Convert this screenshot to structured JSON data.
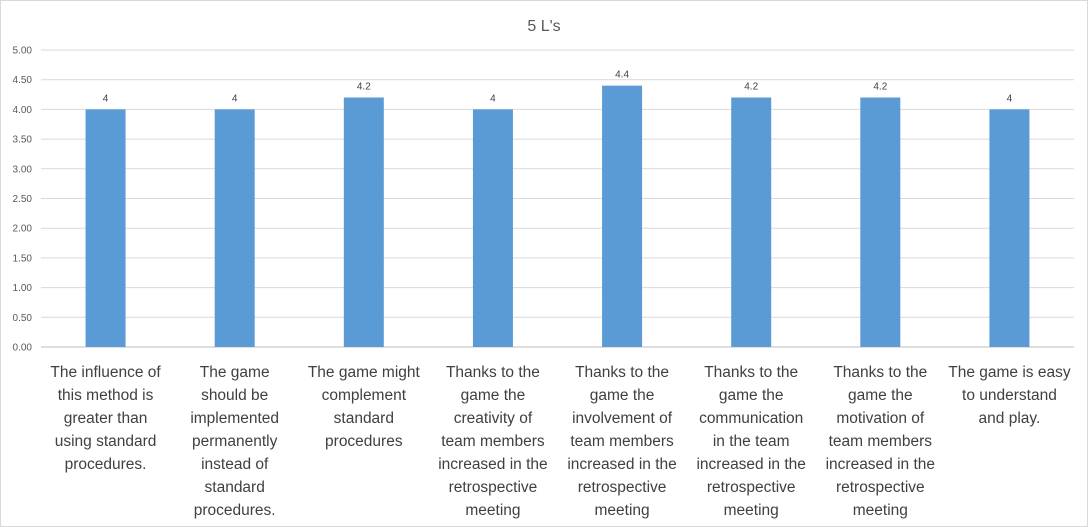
{
  "chart_data": {
    "type": "bar",
    "title": "5 L's",
    "xlabel": "",
    "ylabel": "",
    "ylim": [
      0,
      5
    ],
    "yticks": [
      "0.00",
      "0.50",
      "1.00",
      "1.50",
      "2.00",
      "2.50",
      "3.00",
      "3.50",
      "4.00",
      "4.50",
      "5.00"
    ],
    "grid": true,
    "legend": "none",
    "bar_color": "#5b9bd5",
    "categories": [
      [
        "The influence of",
        "this method is",
        "greater than",
        "using standard",
        "procedures."
      ],
      [
        "The game",
        "should be",
        "implemented",
        "permanently",
        "instead of",
        "standard",
        "procedures."
      ],
      [
        "The game might",
        "complement",
        "standard",
        "procedures"
      ],
      [
        "Thanks to the",
        "game the",
        "creativity of",
        "team members",
        "increased in the",
        "retrospective",
        "meeting"
      ],
      [
        "Thanks to the",
        "game the",
        "involvement of",
        "team members",
        "increased in the",
        "retrospective",
        "meeting"
      ],
      [
        "Thanks to the",
        "game the",
        "communication",
        "in the team",
        "increased in the",
        "retrospective",
        "meeting"
      ],
      [
        "Thanks to the",
        "game the",
        "motivation of",
        "team members",
        "increased in the",
        "retrospective",
        "meeting"
      ],
      [
        "The game is easy",
        "to understand",
        "and play."
      ]
    ],
    "values": [
      4,
      4,
      4.2,
      4,
      4.4,
      4.2,
      4.2,
      4
    ],
    "data_labels": [
      "4",
      "4",
      "4.2",
      "4",
      "4.4",
      "4.2",
      "4.2",
      "4"
    ]
  }
}
